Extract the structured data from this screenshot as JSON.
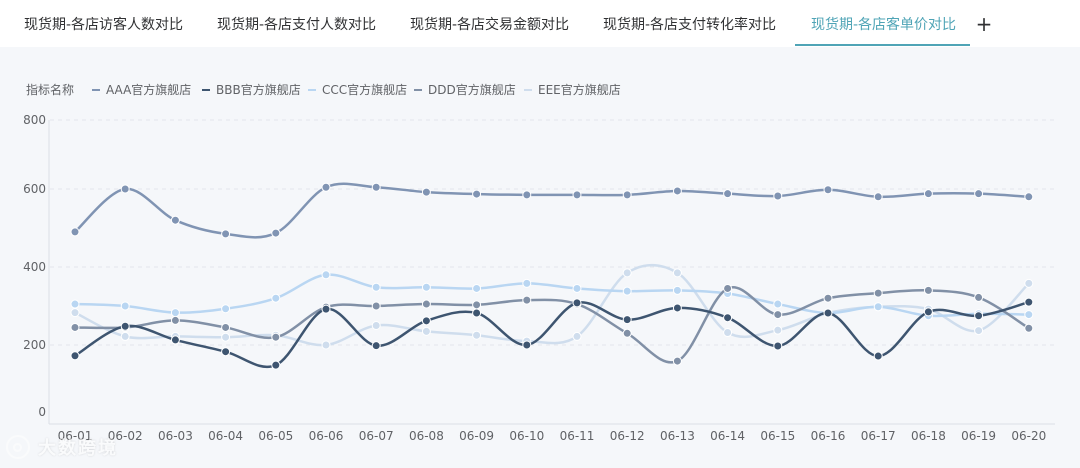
{
  "tabs": [
    {
      "label": "现货期-各店访客人数对比",
      "active": false
    },
    {
      "label": "现货期-各店支付人数对比",
      "active": false
    },
    {
      "label": "现货期-各店交易金额对比",
      "active": false
    },
    {
      "label": "现货期-各店支付转化率对比",
      "active": false
    },
    {
      "label": "现货期-各店客单价对比",
      "active": true
    }
  ],
  "tab_add_label": "+",
  "watermark": {
    "text": "大数跨境"
  },
  "chart_data": {
    "type": "line",
    "legend_title": "指标名称",
    "legend_position": "top-left",
    "categories": [
      "06-01",
      "06-02",
      "06-03",
      "06-04",
      "06-05",
      "06-06",
      "06-07",
      "06-08",
      "06-09",
      "06-10",
      "06-11",
      "06-12",
      "06-13",
      "06-14",
      "06-15",
      "06-16",
      "06-17",
      "06-18",
      "06-19",
      "06-20"
    ],
    "y_ticks": [
      "0",
      "200",
      "400",
      "600",
      "800"
    ],
    "grid": "horizontal dashed",
    "series": [
      {
        "name": "AAA官方旗舰店",
        "color": "#8094b3",
        "values": [
          490,
          600,
          520,
          485,
          487,
          605,
          605,
          592,
          587,
          585,
          585,
          585,
          595,
          588,
          582,
          598,
          580,
          588,
          588,
          580
        ]
      },
      {
        "name": "BBB官方旗舰店",
        "color": "#3e5570",
        "values": [
          168,
          248,
          213,
          180,
          140,
          292,
          198,
          262,
          282,
          200,
          308,
          265,
          295,
          270,
          197,
          282,
          167,
          285,
          275,
          310
        ]
      },
      {
        "name": "CCC官方旗舰店",
        "color": "#b9d6f2",
        "values": [
          305,
          300,
          283,
          293,
          320,
          380,
          348,
          348,
          345,
          358,
          345,
          338,
          340,
          332,
          305,
          282,
          298,
          275,
          280,
          278
        ]
      },
      {
        "name": "DDD官方旗舰店",
        "color": "#8190a6",
        "values": [
          245,
          245,
          263,
          245,
          220,
          297,
          300,
          305,
          303,
          315,
          305,
          230,
          152,
          345,
          278,
          320,
          333,
          340,
          322,
          243
        ]
      },
      {
        "name": "EEE官方旗舰店",
        "color": "#cfdded",
        "values": [
          283,
          222,
          222,
          220,
          225,
          200,
          250,
          235,
          225,
          210,
          222,
          385,
          385,
          232,
          238,
          282,
          298,
          292,
          237,
          358
        ]
      }
    ]
  }
}
